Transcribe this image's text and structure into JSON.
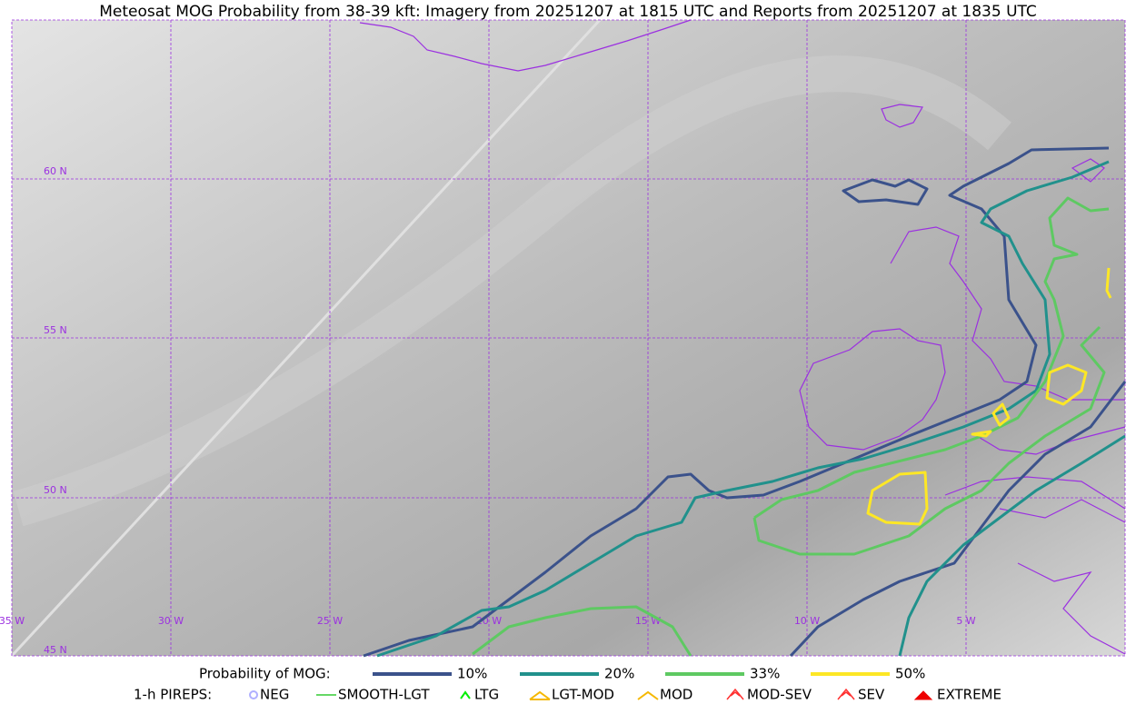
{
  "title": "Meteosat MOG Probability from 38-39 kft: Imagery from 20251207 at 1815 UTC and Reports from 20251207 at 1835 UTC",
  "lat_labels": [
    "60 N",
    "55 N",
    "50 N",
    "45 N"
  ],
  "lon_labels": [
    "35 W",
    "30 W",
    "25 W",
    "20 W",
    "15 W",
    "10 W",
    "5 W"
  ],
  "probability_legend": {
    "label": "Probability of MOG:",
    "items": [
      {
        "name": "10%",
        "color": "#3b528b"
      },
      {
        "name": "20%",
        "color": "#21918c"
      },
      {
        "name": "33%",
        "color": "#5ec962"
      },
      {
        "name": "50%",
        "color": "#fde725"
      }
    ]
  },
  "pirep_legend": {
    "label": "1-h PIREPS:",
    "items": [
      {
        "name": "NEG",
        "color": "#b0b0ff"
      },
      {
        "name": "SMOOTH-LGT",
        "color": "#33cc33"
      },
      {
        "name": "LTG",
        "color": "#00ee00"
      },
      {
        "name": "LGT-MOD",
        "color": "#f5b800"
      },
      {
        "name": "MOD",
        "color": "#f5b800"
      },
      {
        "name": "MOD-SEV",
        "color": "#ff3030"
      },
      {
        "name": "SEV",
        "color": "#ff3030"
      },
      {
        "name": "EXTREME",
        "color": "#ee0000"
      }
    ]
  }
}
